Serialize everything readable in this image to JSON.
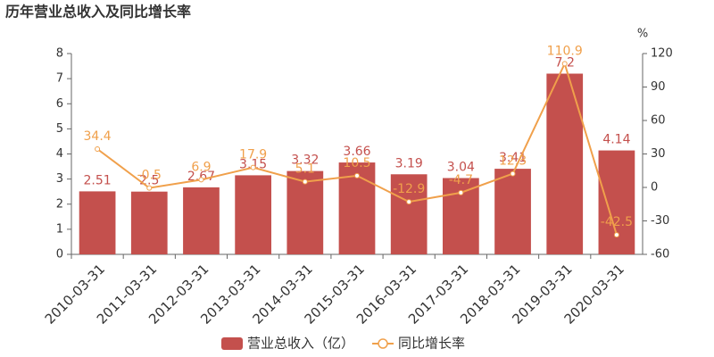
{
  "chart_data": {
    "type": "bar-line",
    "title": "历年营业总收入及同比增长率",
    "y2_label": "%",
    "categories": [
      "2010-03-31",
      "2011-03-31",
      "2012-03-31",
      "2013-03-31",
      "2014-03-31",
      "2015-03-31",
      "2016-03-31",
      "2017-03-31",
      "2018-03-31",
      "2019-03-31",
      "2020-03-31"
    ],
    "series": [
      {
        "name": "营业总收入（亿）",
        "type": "bar",
        "color": "#c4504d",
        "values": [
          2.51,
          2.5,
          2.67,
          3.15,
          3.32,
          3.66,
          3.19,
          3.04,
          3.41,
          7.2,
          4.14
        ]
      },
      {
        "name": "同比增长率",
        "type": "line",
        "axis": "y2",
        "color": "#f0a04b",
        "values": [
          34.4,
          -0.5,
          6.9,
          17.9,
          5.1,
          10.5,
          -12.9,
          -4.7,
          12.3,
          110.9,
          -42.5
        ]
      }
    ],
    "ylim": [
      0,
      8
    ],
    "yticks": [
      0,
      1,
      2,
      3,
      4,
      5,
      6,
      7,
      8
    ],
    "y2lim": [
      -60,
      120
    ],
    "y2ticks": [
      -60,
      -30,
      0,
      30,
      60,
      90,
      120
    ],
    "grid": false,
    "legend": "bottom"
  }
}
